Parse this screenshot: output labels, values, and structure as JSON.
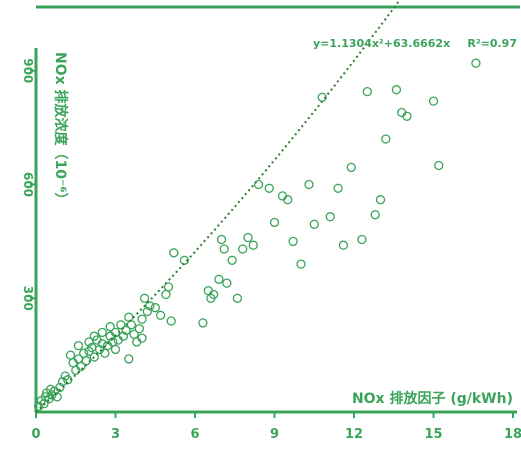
{
  "colors": {
    "accent": "#3aa45a",
    "trend": "#2e7d32",
    "background": "#ffffff"
  },
  "chart_data": {
    "type": "scatter",
    "xlabel": "NOx 排放因子 (g/kWh)",
    "ylabel": "NOx 排放浓度（10⁻⁶）",
    "equation_text": "y=1.1304x²+63.6662x",
    "r2_text": "R²=0.97",
    "xlim": [
      0,
      18
    ],
    "ylim": [
      0,
      960
    ],
    "xticks": [
      0,
      3,
      6,
      9,
      12,
      15,
      18
    ],
    "yticks": [
      300,
      600,
      900
    ],
    "grid": false,
    "trendline": {
      "type": "polynomial",
      "a": 1.1304,
      "b": 63.6662,
      "c": 0,
      "x_range": [
        0,
        16.6
      ]
    },
    "points": [
      [
        0.1,
        15
      ],
      [
        0.2,
        30
      ],
      [
        0.3,
        22
      ],
      [
        0.35,
        40
      ],
      [
        0.4,
        50
      ],
      [
        0.5,
        35
      ],
      [
        0.55,
        60
      ],
      [
        0.6,
        45
      ],
      [
        0.7,
        55
      ],
      [
        0.8,
        40
      ],
      [
        0.9,
        65
      ],
      [
        1.0,
        80
      ],
      [
        1.1,
        95
      ],
      [
        1.2,
        85
      ],
      [
        1.3,
        150
      ],
      [
        1.4,
        130
      ],
      [
        1.5,
        110
      ],
      [
        1.6,
        140
      ],
      [
        1.6,
        175
      ],
      [
        1.7,
        120
      ],
      [
        1.8,
        155
      ],
      [
        1.9,
        135
      ],
      [
        2.0,
        160
      ],
      [
        2.0,
        185
      ],
      [
        2.1,
        170
      ],
      [
        2.2,
        145
      ],
      [
        2.2,
        200
      ],
      [
        2.3,
        190
      ],
      [
        2.4,
        165
      ],
      [
        2.5,
        210
      ],
      [
        2.5,
        180
      ],
      [
        2.6,
        155
      ],
      [
        2.7,
        175
      ],
      [
        2.8,
        200
      ],
      [
        2.8,
        225
      ],
      [
        2.9,
        185
      ],
      [
        3.0,
        165
      ],
      [
        3.0,
        210
      ],
      [
        3.1,
        190
      ],
      [
        3.2,
        230
      ],
      [
        3.3,
        200
      ],
      [
        3.4,
        215
      ],
      [
        3.5,
        140
      ],
      [
        3.5,
        250
      ],
      [
        3.6,
        230
      ],
      [
        3.7,
        205
      ],
      [
        3.8,
        185
      ],
      [
        3.9,
        220
      ],
      [
        4.0,
        195
      ],
      [
        4.0,
        245
      ],
      [
        4.1,
        300
      ],
      [
        4.2,
        265
      ],
      [
        4.3,
        280
      ],
      [
        4.5,
        275
      ],
      [
        4.7,
        255
      ],
      [
        4.9,
        310
      ],
      [
        5.0,
        330
      ],
      [
        5.1,
        240
      ],
      [
        5.2,
        420
      ],
      [
        5.6,
        400
      ],
      [
        6.3,
        235
      ],
      [
        6.5,
        320
      ],
      [
        6.6,
        300
      ],
      [
        6.7,
        310
      ],
      [
        6.9,
        350
      ],
      [
        7.0,
        455
      ],
      [
        7.1,
        430
      ],
      [
        7.2,
        340
      ],
      [
        7.4,
        400
      ],
      [
        7.6,
        300
      ],
      [
        7.8,
        430
      ],
      [
        8.0,
        460
      ],
      [
        8.2,
        440
      ],
      [
        8.4,
        600
      ],
      [
        8.8,
        590
      ],
      [
        9.0,
        500
      ],
      [
        9.3,
        570
      ],
      [
        9.5,
        560
      ],
      [
        9.7,
        450
      ],
      [
        10.0,
        390
      ],
      [
        10.3,
        600
      ],
      [
        10.5,
        495
      ],
      [
        10.8,
        830
      ],
      [
        11.1,
        515
      ],
      [
        11.4,
        590
      ],
      [
        11.6,
        440
      ],
      [
        11.9,
        645
      ],
      [
        12.3,
        455
      ],
      [
        12.5,
        845
      ],
      [
        12.8,
        520
      ],
      [
        13.0,
        560
      ],
      [
        13.2,
        720
      ],
      [
        13.6,
        850
      ],
      [
        13.8,
        790
      ],
      [
        14.0,
        780
      ],
      [
        15.0,
        820
      ],
      [
        15.2,
        650
      ],
      [
        16.6,
        920
      ]
    ]
  }
}
